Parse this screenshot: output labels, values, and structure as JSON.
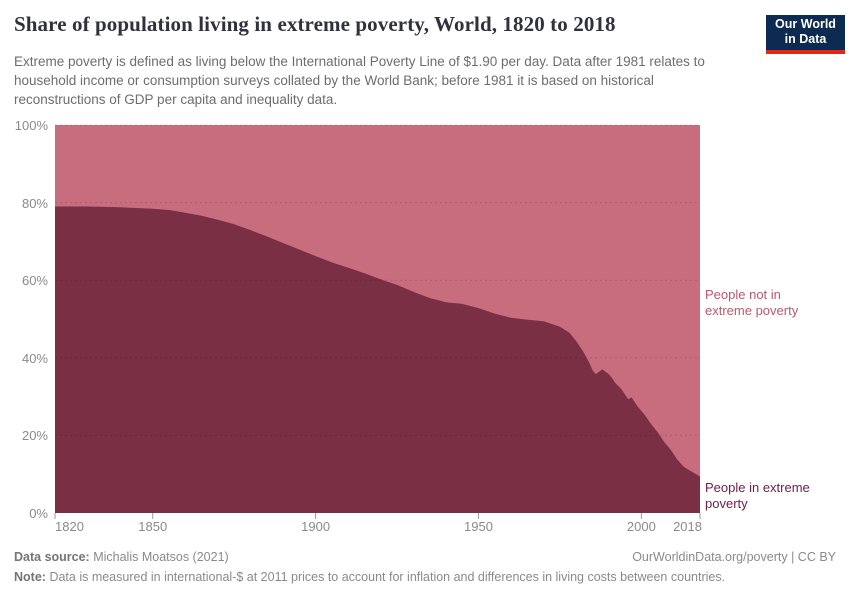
{
  "header": {
    "title": "Share of population living in extreme poverty, World, 1820 to 2018",
    "subtitle": "Extreme poverty is defined as living below the International Poverty Line of $1.90 per day. Data after 1981 relates to household income or consumption surveys collated by the World Bank; before 1981 it is based on historical reconstructions of GDP per capita and inequality data."
  },
  "logo": {
    "line1": "Our World",
    "line2": "in Data"
  },
  "colors": {
    "area_poverty": "#7a2f44",
    "area_not_poverty": "#c76d7e",
    "label_poverty": "#701f3f",
    "label_not_poverty": "#c0566e",
    "grid": "rgba(0,0,0,0.13)",
    "tick_mark": "#9a9a9a",
    "axis_text": "#8a8a8a",
    "logo_navy": "#0d2b52",
    "logo_red": "#e02815"
  },
  "chart_data": {
    "type": "area",
    "stacked": true,
    "title": "Share of population living in extreme poverty, World, 1820 to 2018",
    "x_label": "",
    "y_label": "",
    "x_range": [
      1820,
      2018
    ],
    "y_range": [
      0,
      100
    ],
    "x_ticks": [
      1820,
      1850,
      1900,
      1950,
      2000,
      2018
    ],
    "y_ticks": [
      0,
      20,
      40,
      60,
      80,
      100
    ],
    "y_tick_suffix": "%",
    "grid": "dashed-horizontal",
    "legend_position": "right-edge-labels",
    "series": [
      {
        "name": "People in extreme poverty",
        "unit": "%",
        "points": [
          [
            1820,
            79.0
          ],
          [
            1830,
            79.0
          ],
          [
            1840,
            78.8
          ],
          [
            1850,
            78.4
          ],
          [
            1855,
            78.1
          ],
          [
            1860,
            77.4
          ],
          [
            1865,
            76.6
          ],
          [
            1870,
            75.6
          ],
          [
            1875,
            74.4
          ],
          [
            1880,
            72.9
          ],
          [
            1885,
            71.3
          ],
          [
            1890,
            69.6
          ],
          [
            1895,
            67.9
          ],
          [
            1900,
            66.2
          ],
          [
            1905,
            64.6
          ],
          [
            1910,
            63.2
          ],
          [
            1915,
            61.8
          ],
          [
            1920,
            60.2
          ],
          [
            1925,
            58.8
          ],
          [
            1930,
            57.0
          ],
          [
            1935,
            55.4
          ],
          [
            1940,
            54.3
          ],
          [
            1945,
            53.9
          ],
          [
            1950,
            52.8
          ],
          [
            1955,
            51.4
          ],
          [
            1960,
            50.3
          ],
          [
            1965,
            49.8
          ],
          [
            1970,
            49.4
          ],
          [
            1975,
            48.0
          ],
          [
            1978,
            46.4
          ],
          [
            1980,
            44.3
          ],
          [
            1982,
            41.8
          ],
          [
            1984,
            38.8
          ],
          [
            1985,
            36.8
          ],
          [
            1986,
            35.8
          ],
          [
            1988,
            37.0
          ],
          [
            1990,
            35.8
          ],
          [
            1991,
            34.8
          ],
          [
            1992,
            33.5
          ],
          [
            1994,
            31.8
          ],
          [
            1995,
            30.5
          ],
          [
            1996,
            29.3
          ],
          [
            1997,
            29.8
          ],
          [
            1998,
            28.5
          ],
          [
            1999,
            27.3
          ],
          [
            2001,
            25.3
          ],
          [
            2003,
            22.9
          ],
          [
            2005,
            20.8
          ],
          [
            2007,
            18.3
          ],
          [
            2009,
            16.3
          ],
          [
            2011,
            13.8
          ],
          [
            2013,
            11.9
          ],
          [
            2015,
            10.9
          ],
          [
            2016,
            10.4
          ],
          [
            2018,
            9.4
          ]
        ]
      },
      {
        "name": "People not in extreme poverty",
        "unit": "%",
        "derivation": "remainder_to_100"
      }
    ],
    "annotations": [
      {
        "text": "People not in extreme poverty",
        "side": "right",
        "series": 1
      },
      {
        "text": "People in extreme poverty",
        "side": "right",
        "series": 0
      }
    ]
  },
  "footer": {
    "source_label": "Data source:",
    "source_value": "Michalis Moatsos (2021)",
    "link": "OurWorldinData.org/poverty | CC BY",
    "note_label": "Note:",
    "note_value": "Data is measured in international-$ at 2011 prices to account for inflation and differences in living costs between countries."
  }
}
